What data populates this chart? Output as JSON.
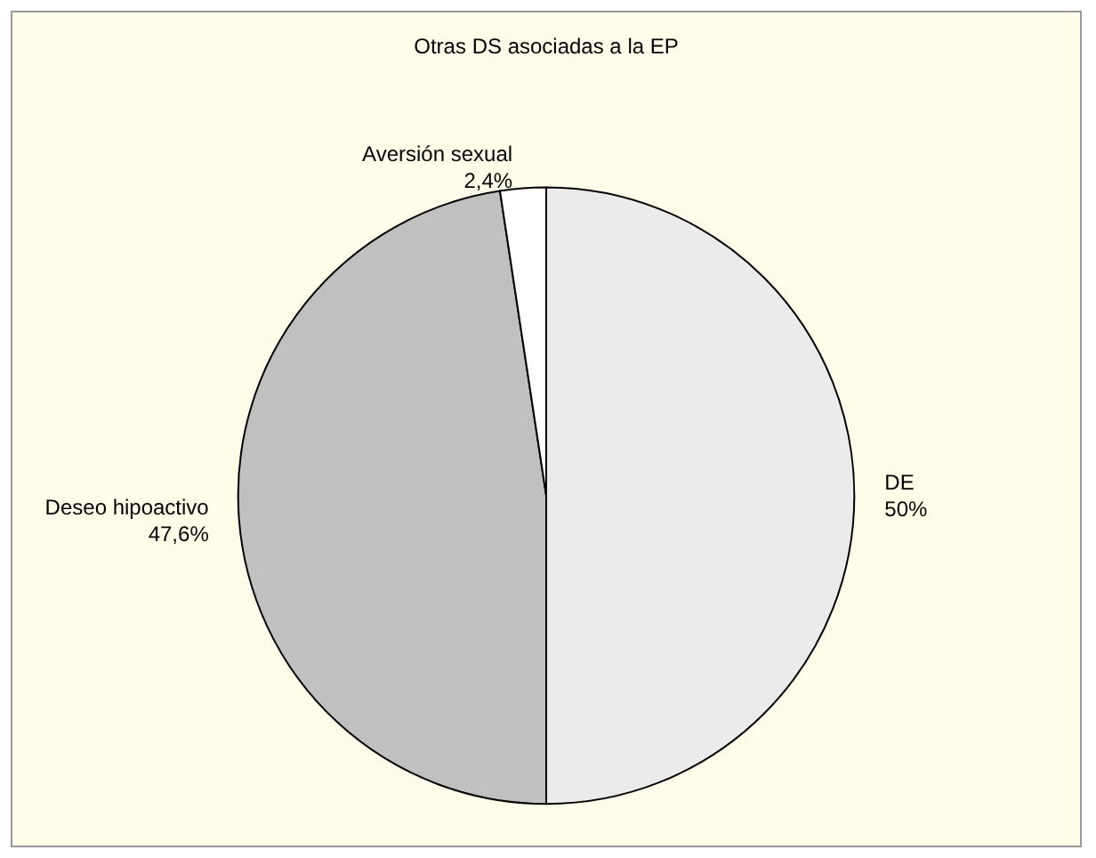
{
  "chart_data": {
    "type": "pie",
    "title": "Otras DS asociadas a la EP",
    "categories": [
      "DE",
      "Deseo hipoactivo",
      "Aversión sexual"
    ],
    "values": [
      50,
      47.6,
      2.4
    ],
    "value_labels": [
      "50%",
      "47,6%",
      "2,4%"
    ],
    "colors": [
      "#ebebeb",
      "#c0c0c0",
      "#ffffff"
    ]
  }
}
